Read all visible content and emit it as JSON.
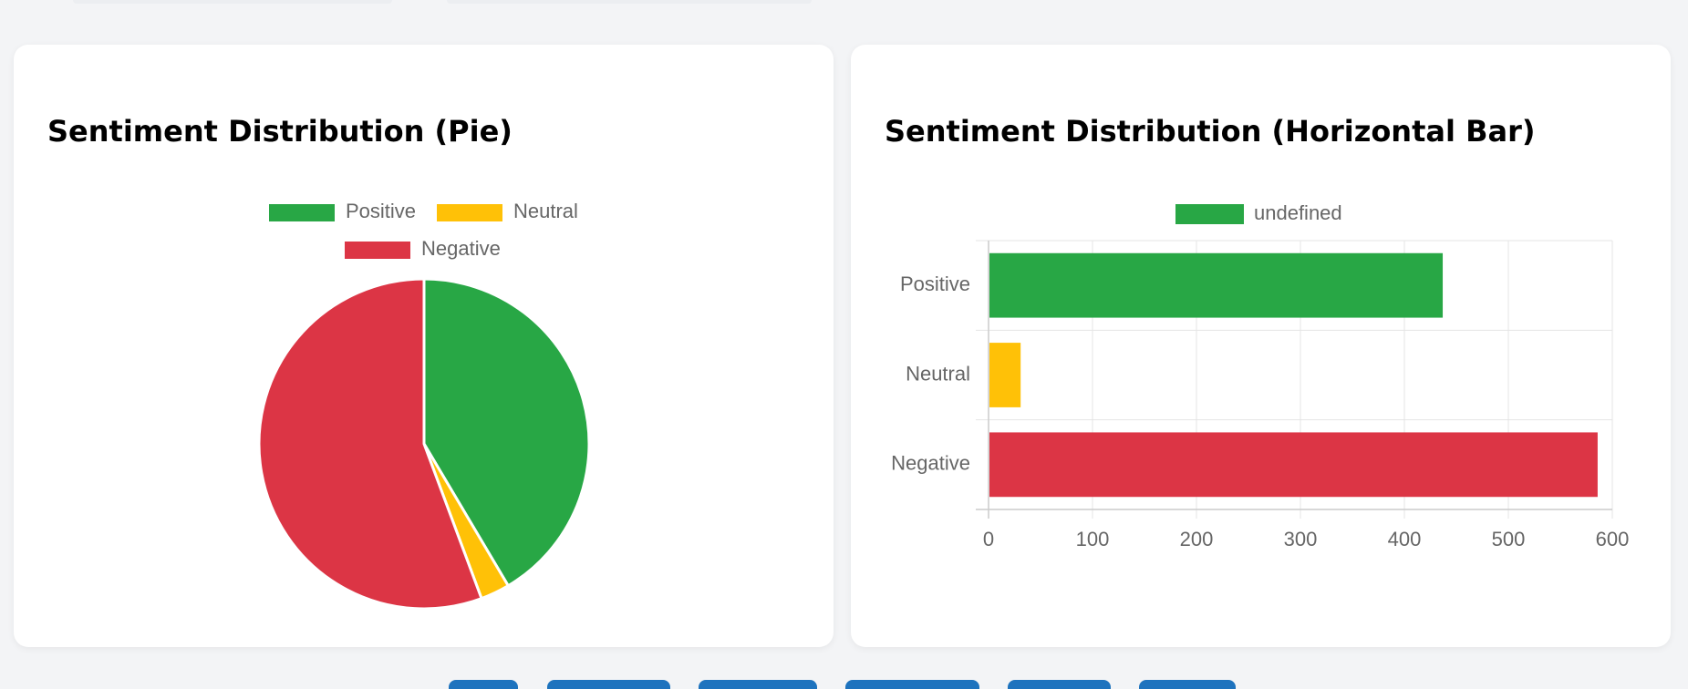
{
  "charts": {
    "pie": {
      "title": "Sentiment Distribution (Pie)"
    },
    "bar": {
      "title": "Sentiment Distribution (Horizontal Bar)"
    }
  },
  "chart_data": [
    {
      "type": "pie",
      "title": "Sentiment Distribution (Pie)",
      "categories": [
        "Positive",
        "Neutral",
        "Negative"
      ],
      "values": [
        436,
        30,
        585
      ],
      "colors": [
        "#28a745",
        "#ffc107",
        "#dc3545"
      ],
      "legend_position": "top"
    },
    {
      "type": "bar",
      "orientation": "horizontal",
      "title": "Sentiment Distribution (Horizontal Bar)",
      "categories": [
        "Positive",
        "Neutral",
        "Negative"
      ],
      "series": [
        {
          "name": "undefined",
          "values": [
            436,
            30,
            585
          ]
        }
      ],
      "colors": [
        "#28a745",
        "#ffc107",
        "#dc3545"
      ],
      "xlim": [
        0,
        600
      ],
      "xticks": [
        0,
        100,
        200,
        300,
        400,
        500,
        600
      ],
      "grid": true,
      "legend_position": "top"
    }
  ],
  "colors": {
    "page_bg": "#f3f4f6",
    "card_bg": "#ffffff",
    "button": "#1e73be",
    "grid": "#e5e5e5",
    "axis_text": "#666666"
  }
}
